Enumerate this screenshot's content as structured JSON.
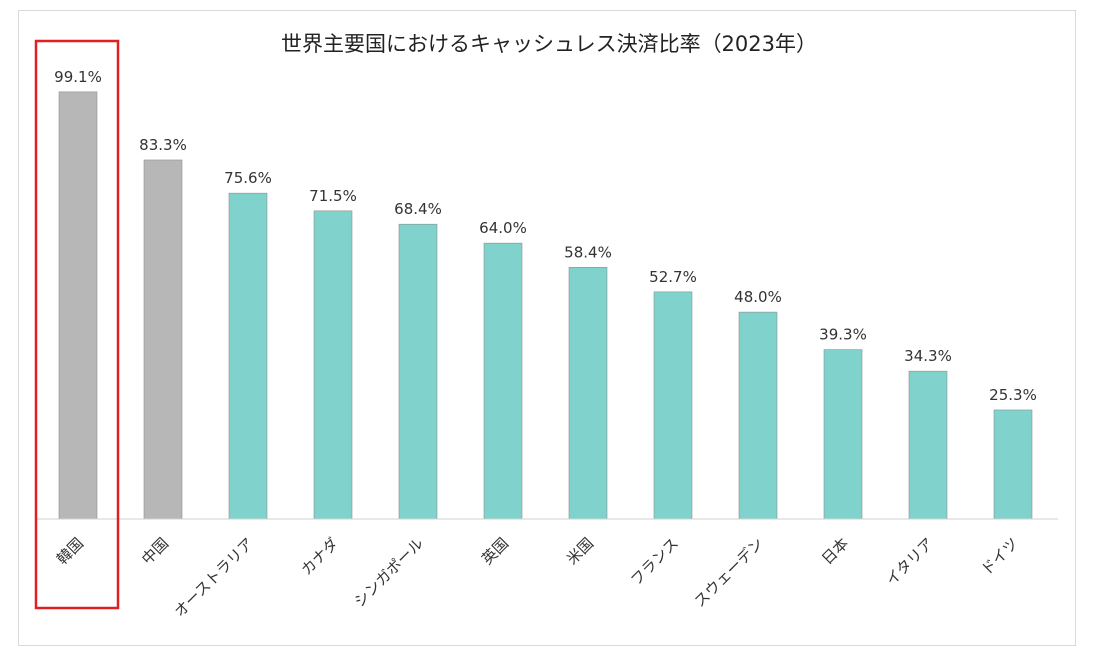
{
  "chart_data": {
    "type": "bar",
    "title": "世界主要国におけるキャッシュレス決済比率（2023年）",
    "categories": [
      "韓国",
      "中国",
      "オーストラリア",
      "カナダ",
      "シンガポール",
      "英国",
      "米国",
      "フランス",
      "スウェーデン",
      "日本",
      "イタリア",
      "ドイツ"
    ],
    "values": [
      99.1,
      83.3,
      75.6,
      71.5,
      68.4,
      64.0,
      58.4,
      52.7,
      48.0,
      39.3,
      34.3,
      25.3
    ],
    "value_labels": [
      "99.1%",
      "83.3%",
      "75.6%",
      "71.5%",
      "68.4%",
      "64.0%",
      "58.4%",
      "52.7%",
      "48.0%",
      "39.3%",
      "34.3%",
      "25.3%"
    ],
    "bar_colors": [
      "#b7b7b7",
      "#b7b7b7",
      "#7fd3cc",
      "#7fd3cc",
      "#7fd3cc",
      "#7fd3cc",
      "#7fd3cc",
      "#7fd3cc",
      "#7fd3cc",
      "#7fd3cc",
      "#7fd3cc",
      "#7fd3cc"
    ],
    "highlighted_category": "韓国",
    "highlight_color": "#e02020",
    "xlabel": "",
    "ylabel": "",
    "ylim": [
      0,
      100
    ],
    "grid": false,
    "legend": "none"
  }
}
